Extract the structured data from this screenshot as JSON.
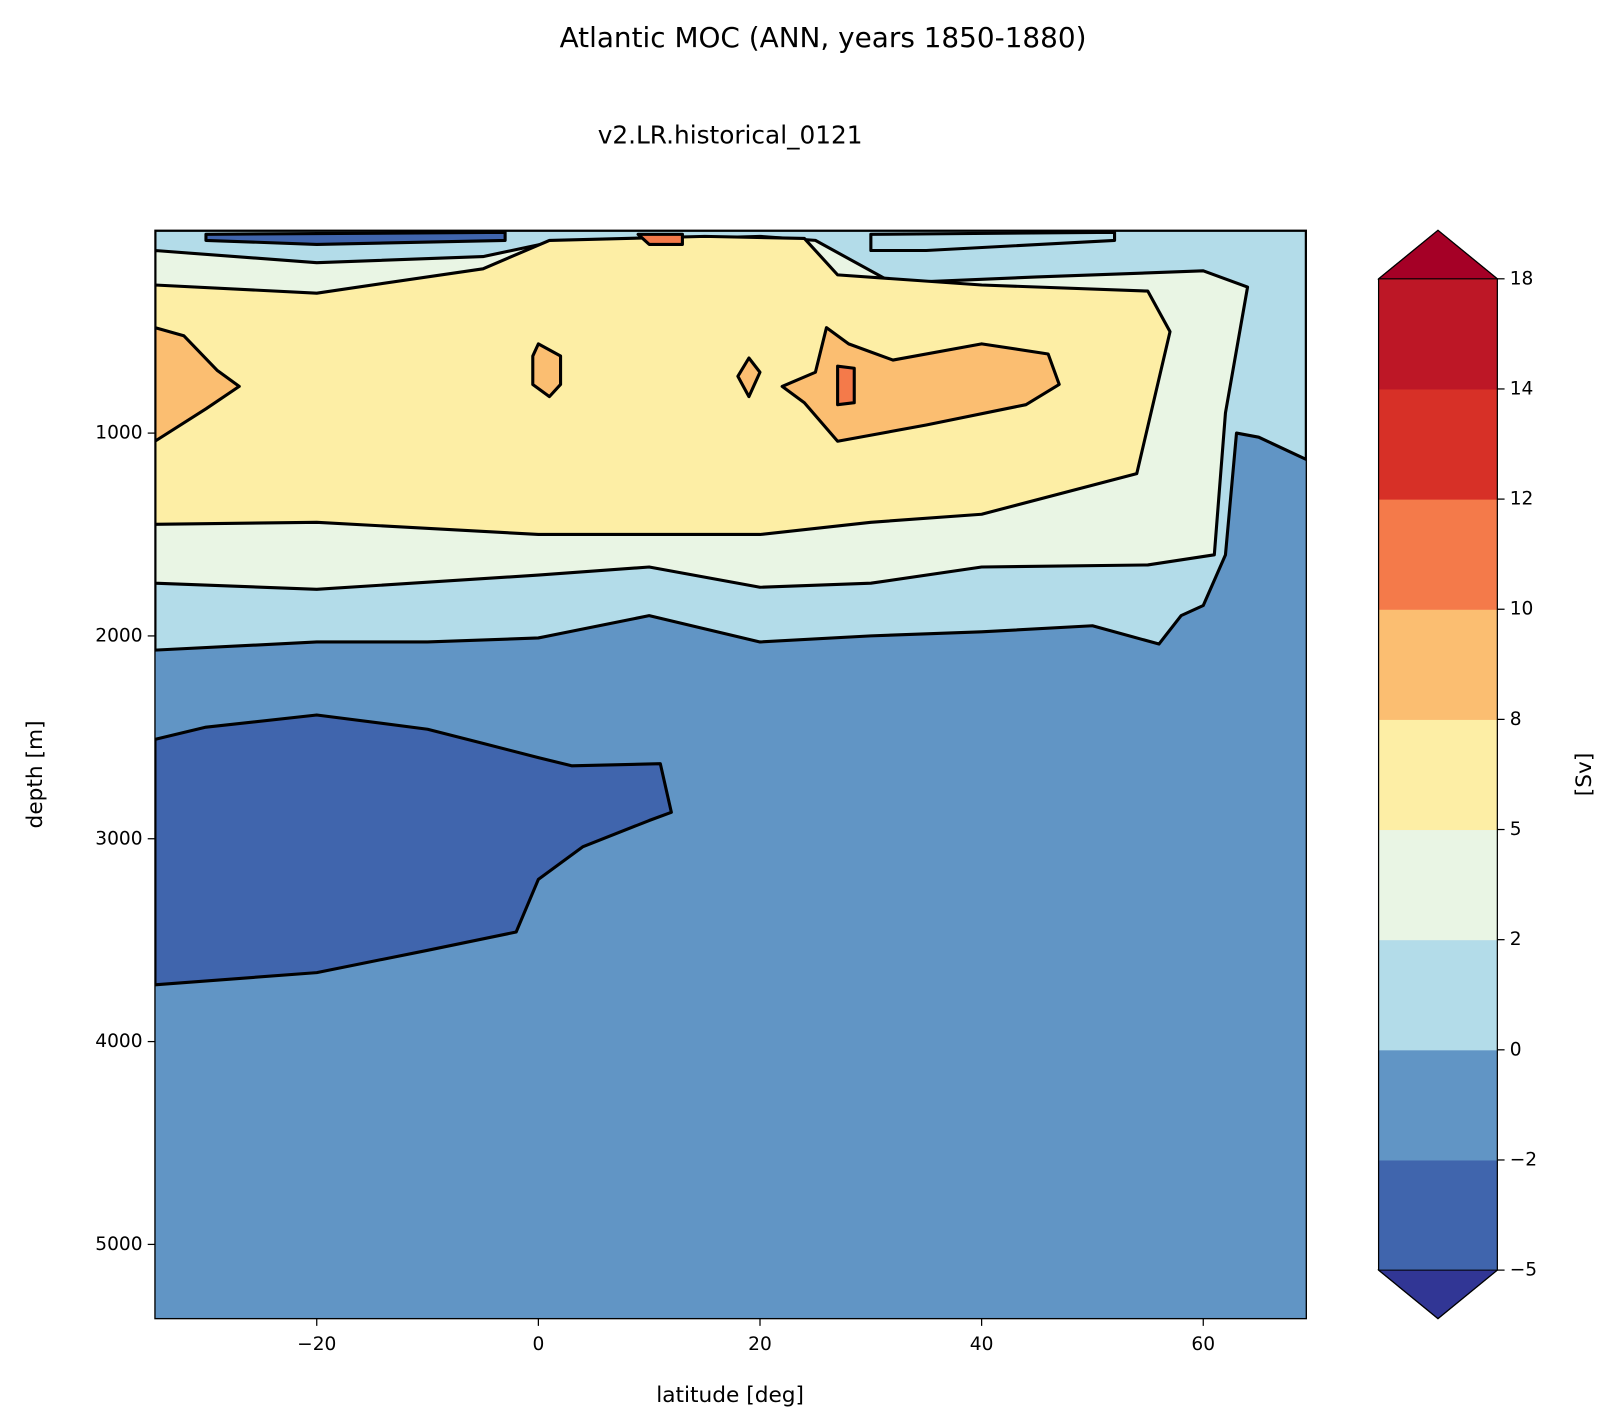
{
  "chart_data": {
    "type": "contour",
    "title": "Atlantic MOC (ANN, years 1850-1880)",
    "subtitle": "v2.LR.historical_0121",
    "xlabel": "latitude [deg]",
    "ylabel": "depth [m]",
    "xlim": [
      -34.6,
      69.3
    ],
    "ylim": [
      0,
      5366
    ],
    "y_inverted": true,
    "xticks": [
      {
        "value": -20,
        "label": "−20"
      },
      0,
      20,
      40,
      60
    ],
    "yticks": [
      1000,
      2000,
      3000,
      4000,
      5000
    ],
    "colorbar": {
      "label": "[Sv]",
      "levels": [
        {
          "value": -5,
          "label": "−5"
        },
        {
          "value": -2,
          "label": "−2"
        },
        0,
        2,
        5,
        8,
        10,
        12,
        14,
        18
      ],
      "colors": [
        "#4065ad",
        "#6195c5",
        "#b3dce9",
        "#e9f5e4",
        "#fdeea5",
        "#fbbe71",
        "#f47a4a",
        "#d73027",
        "#bd1726"
      ],
      "under_color": "#313695",
      "over_color": "#a50026"
    },
    "regions": [
      {
        "band": -2,
        "points": [
          [
            -34.6,
            0
          ],
          [
            69.3,
            0
          ],
          [
            69.3,
            5366
          ],
          [
            -34.6,
            5366
          ]
        ]
      },
      {
        "band": 0,
        "points": [
          [
            -34.6,
            0
          ],
          [
            69.3,
            0
          ],
          [
            69.3,
            1130
          ],
          [
            65,
            1020
          ],
          [
            63,
            1000
          ],
          [
            62,
            1600
          ],
          [
            60,
            1850
          ],
          [
            58,
            1900
          ],
          [
            56,
            2040
          ],
          [
            50,
            1950
          ],
          [
            40,
            1980
          ],
          [
            30,
            2000
          ],
          [
            20,
            2030
          ],
          [
            10,
            1900
          ],
          [
            0,
            2010
          ],
          [
            -10,
            2030
          ],
          [
            -20,
            2030
          ],
          [
            -34.6,
            2070
          ]
        ]
      },
      {
        "band": 2,
        "points": [
          [
            -34.6,
            100
          ],
          [
            -20,
            160
          ],
          [
            -5,
            130
          ],
          [
            1,
            60
          ],
          [
            20,
            30
          ],
          [
            25,
            50
          ],
          [
            32,
            260
          ],
          [
            45,
            230
          ],
          [
            60,
            200
          ],
          [
            64,
            280
          ],
          [
            62,
            900
          ],
          [
            61,
            1600
          ],
          [
            55,
            1650
          ],
          [
            40,
            1660
          ],
          [
            30,
            1740
          ],
          [
            20,
            1760
          ],
          [
            10,
            1660
          ],
          [
            0,
            1700
          ],
          [
            -20,
            1770
          ],
          [
            -34.6,
            1740
          ]
        ]
      },
      {
        "band": 5,
        "points": [
          [
            -34.6,
            270
          ],
          [
            -20,
            310
          ],
          [
            -5,
            190
          ],
          [
            1,
            50
          ],
          [
            15,
            30
          ],
          [
            24,
            40
          ],
          [
            27,
            220
          ],
          [
            40,
            270
          ],
          [
            55,
            300
          ],
          [
            57,
            500
          ],
          [
            54,
            1200
          ],
          [
            40,
            1400
          ],
          [
            30,
            1440
          ],
          [
            20,
            1500
          ],
          [
            0,
            1500
          ],
          [
            -20,
            1440
          ],
          [
            -34.6,
            1450
          ]
        ]
      },
      {
        "band": 8,
        "points": [
          [
            -34.6,
            480
          ],
          [
            -32,
            520
          ],
          [
            -29,
            690
          ],
          [
            -27,
            770
          ],
          [
            -30,
            880
          ],
          [
            -34.6,
            1040
          ]
        ]
      },
      {
        "band": 8,
        "points": [
          [
            26,
            480
          ],
          [
            28,
            560
          ],
          [
            32,
            640
          ],
          [
            40,
            560
          ],
          [
            46,
            610
          ],
          [
            47,
            760
          ],
          [
            44,
            860
          ],
          [
            35,
            960
          ],
          [
            27,
            1040
          ],
          [
            24,
            850
          ],
          [
            22,
            770
          ],
          [
            25,
            700
          ]
        ]
      },
      {
        "band": 8,
        "points": [
          [
            0,
            560
          ],
          [
            2,
            620
          ],
          [
            2,
            760
          ],
          [
            1,
            820
          ],
          [
            -0.5,
            760
          ],
          [
            -0.5,
            620
          ]
        ]
      },
      {
        "band": 8,
        "points": [
          [
            19,
            630
          ],
          [
            20,
            700
          ],
          [
            19,
            820
          ],
          [
            18,
            720
          ]
        ]
      },
      {
        "band": 10,
        "points": [
          [
            27,
            670
          ],
          [
            28.5,
            680
          ],
          [
            28.5,
            850
          ],
          [
            27,
            860
          ]
        ]
      },
      {
        "band": 10,
        "points": [
          [
            9,
            20
          ],
          [
            13,
            20
          ],
          [
            13,
            70
          ],
          [
            10,
            70
          ]
        ]
      },
      {
        "band": -5,
        "points": [
          [
            -34.6,
            2510
          ],
          [
            -30,
            2450
          ],
          [
            -20,
            2390
          ],
          [
            -10,
            2460
          ],
          [
            -5,
            2530
          ],
          [
            0,
            2600
          ],
          [
            3,
            2640
          ],
          [
            11,
            2630
          ],
          [
            12,
            2870
          ],
          [
            10,
            2910
          ],
          [
            4,
            3040
          ],
          [
            0,
            3200
          ],
          [
            -2,
            3460
          ],
          [
            -10,
            3550
          ],
          [
            -20,
            3660
          ],
          [
            -34.6,
            3720
          ]
        ]
      },
      {
        "band": -5,
        "points": [
          [
            -30,
            20
          ],
          [
            -3,
            10
          ],
          [
            -3,
            50
          ],
          [
            -20,
            70
          ],
          [
            -30,
            50
          ]
        ]
      },
      {
        "band": 0,
        "points": [
          [
            30,
            20
          ],
          [
            52,
            10
          ],
          [
            52,
            50
          ],
          [
            35,
            100
          ],
          [
            30,
            100
          ]
        ]
      }
    ]
  }
}
